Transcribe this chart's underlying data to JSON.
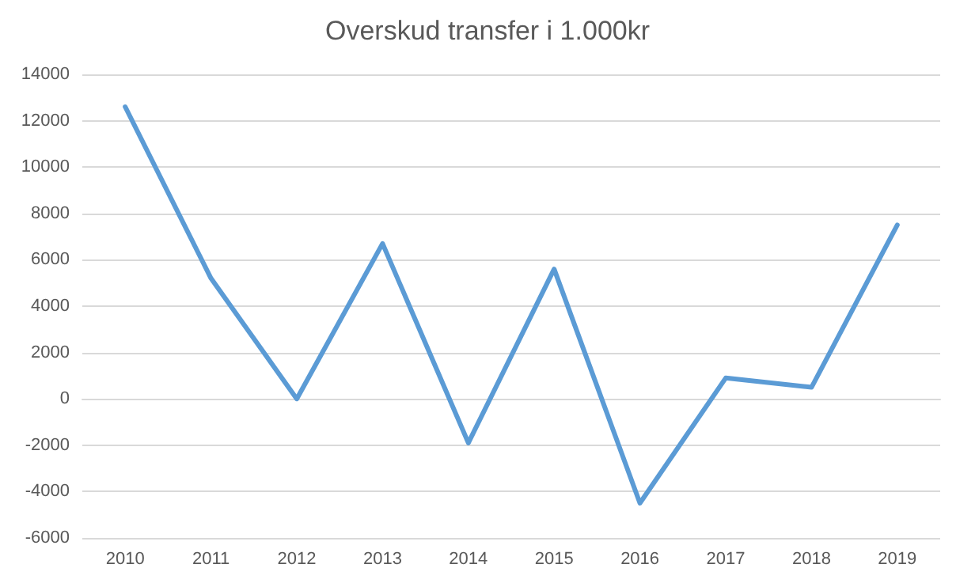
{
  "chart_data": {
    "type": "line",
    "title": "Overskud transfer i 1.000kr",
    "categories": [
      "2010",
      "2011",
      "2012",
      "2013",
      "2014",
      "2015",
      "2016",
      "2017",
      "2018",
      "2019"
    ],
    "series": [
      {
        "color": "#5b9bd5",
        "values": [
          12600,
          5200,
          0,
          6700,
          -1900,
          5600,
          -4500,
          900,
          500,
          7500
        ]
      }
    ],
    "ylim": [
      -6000,
      14000
    ],
    "yticks": [
      -6000,
      -4000,
      -2000,
      0,
      2000,
      4000,
      6000,
      8000,
      10000,
      12000,
      14000
    ],
    "grid": "y",
    "marker": "none",
    "line_style": "solid"
  }
}
